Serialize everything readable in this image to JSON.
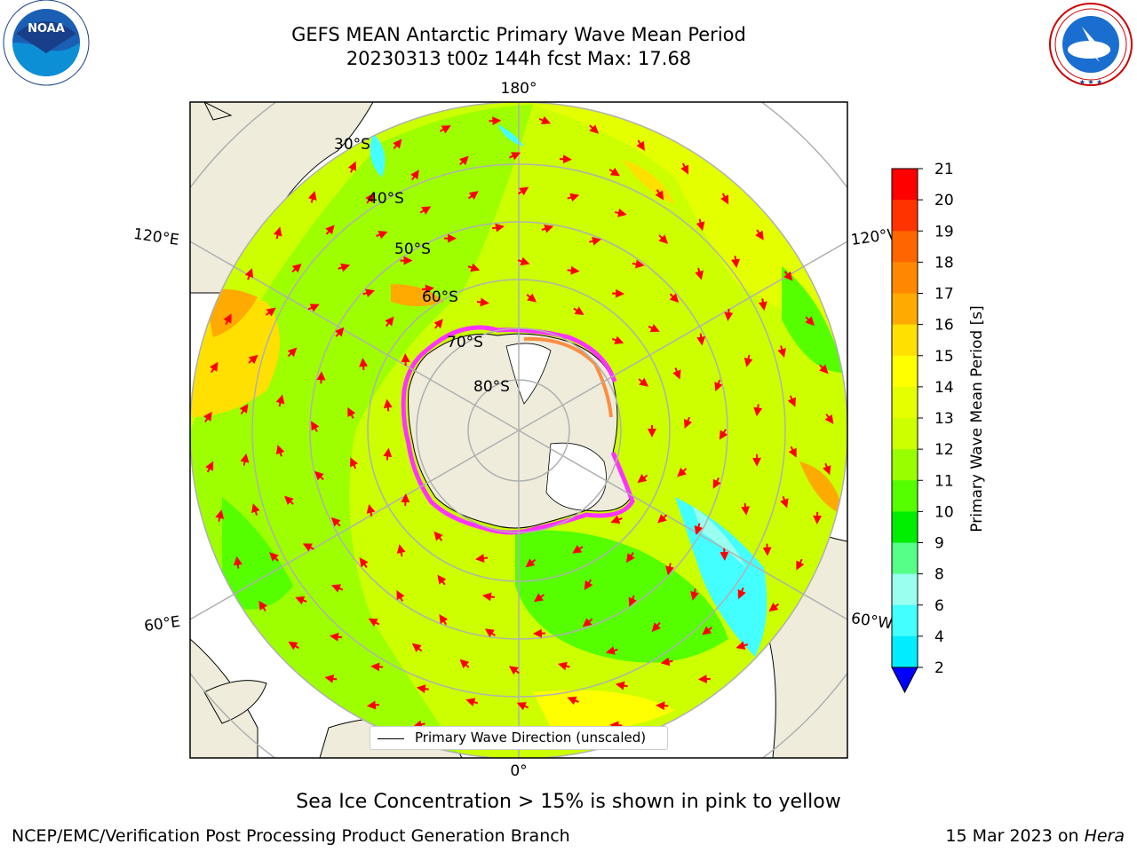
{
  "header": {
    "title_line1": "GEFS MEAN Antarctic Primary Wave Mean Period",
    "title_line2": "20230313 t00z 144h fcst    Max: 17.68"
  },
  "logos": {
    "left": "noaa-logo",
    "left_text": "NOAA",
    "right": "nws-logo",
    "right_text": "NATIONAL WEATHER SERVICE"
  },
  "map": {
    "projection": "south-polar-stereographic",
    "lon_labels": {
      "top": "180°",
      "bottom": "0°",
      "upper_left": "120°E",
      "upper_right": "120°W",
      "lower_left": "60°E",
      "lower_right": "60°W"
    },
    "lat_labels": [
      "30°S",
      "40°S",
      "50°S",
      "60°S",
      "70°S",
      "80°S"
    ],
    "legend_label": "Primary Wave Direction (unscaled)"
  },
  "colorbar": {
    "label": "Primary Wave Mean Period [s]",
    "ticks": [
      "21",
      "20",
      "19",
      "18",
      "17",
      "16",
      "15",
      "14",
      "13",
      "12",
      "11",
      "10",
      "9",
      "8",
      "6",
      "4",
      "2"
    ],
    "colors": [
      "#ff0000",
      "#ff3300",
      "#ff6600",
      "#ff8800",
      "#ffaa00",
      "#ffe000",
      "#ffff00",
      "#e6ff00",
      "#ccff00",
      "#99ff00",
      "#55ff00",
      "#00ee00",
      "#55ff88",
      "#99ffee",
      "#44ffff",
      "#00eeff",
      "#00aaff",
      "#0044ff"
    ],
    "under_color": "#0000ff"
  },
  "footer": {
    "note": "Sea Ice Concentration > 15% is shown in pink to yellow",
    "left": "NCEP/EMC/Verification Post Processing Product Generation Branch",
    "right_date": "15 Mar 2023 on ",
    "right_host": "Hera"
  }
}
